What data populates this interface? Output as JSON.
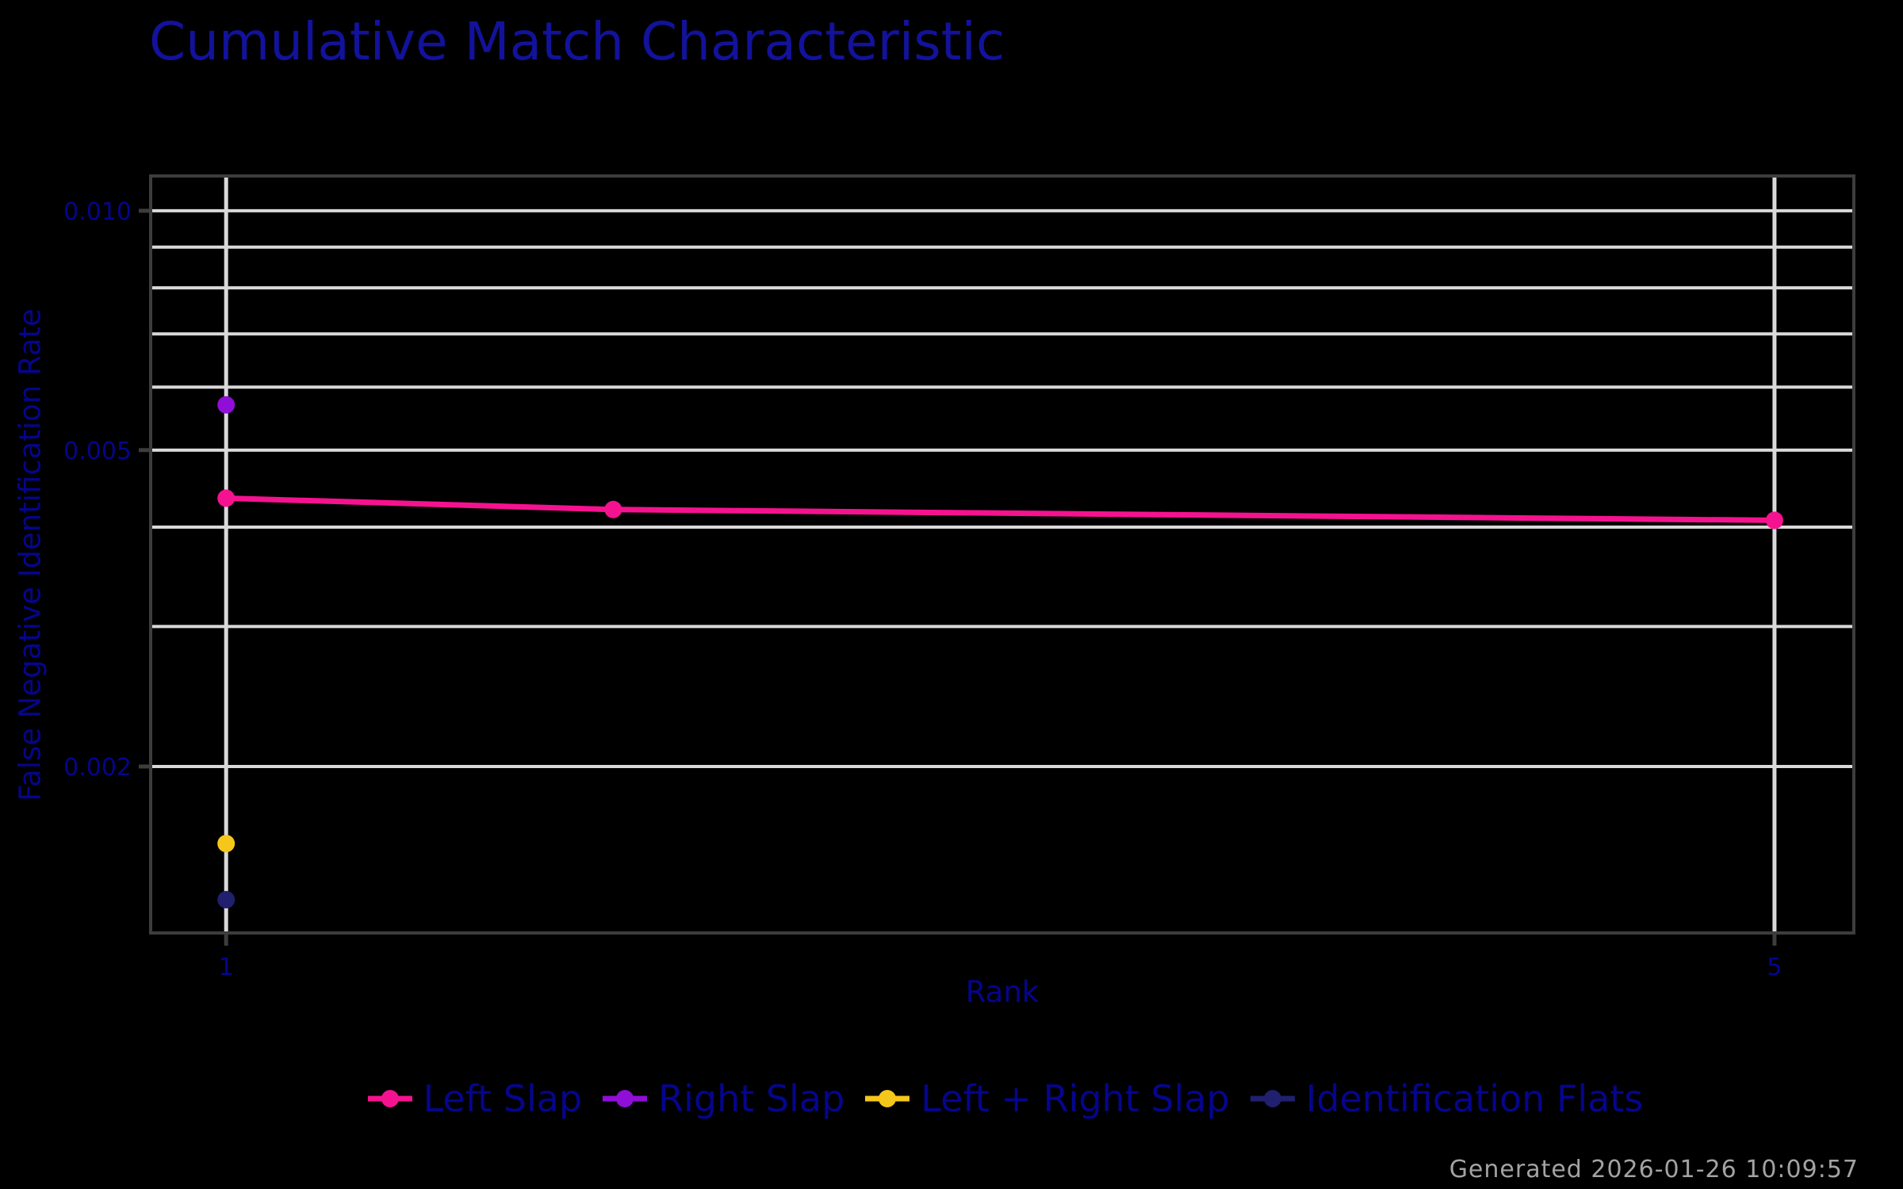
{
  "title": {
    "text": "Cumulative Match Characteristic"
  },
  "axes": {
    "x_label": "Rank",
    "y_label": "False Negative Identification Rate",
    "x_tick_labels": [
      "1",
      "5"
    ],
    "y_tick_labels": [
      "0.010",
      "0.005",
      "0.002"
    ]
  },
  "footer": {
    "text": "Generated 2026-01-26 10:09:57"
  },
  "style": {
    "background": "#000000",
    "title_color": "#12129B",
    "text_color": "#05058D",
    "grid_color": "#D9D9D9",
    "border_color": "#3D3D3D",
    "tick_color": "#3D3D3D",
    "timestamp_color": "#A3A3A3"
  },
  "chart_data": {
    "type": "line",
    "title": "Cumulative Match Characteristic",
    "xlabel": "Rank",
    "ylabel": "False Negative Identification Rate",
    "x_scale": "linear",
    "y_scale": "log10",
    "xlim": [
      0.805,
      5.205
    ],
    "ylim": [
      0.001235,
      0.01106
    ],
    "x_ticks": [
      1,
      5
    ],
    "y_ticks": [
      0.01,
      0.005,
      0.002
    ],
    "x_gridlines": [
      1,
      5
    ],
    "y_gridlines": [
      0.002,
      0.003,
      0.004,
      0.005,
      0.006,
      0.007,
      0.008,
      0.009,
      0.01
    ],
    "grid": true,
    "legend_position": "bottom",
    "series": [
      {
        "name": "Left Slap",
        "color": "#F5128F",
        "x": [
          1,
          2,
          5
        ],
        "y": [
          0.00435,
          0.00421,
          0.00408
        ]
      },
      {
        "name": "Right Slap",
        "color": "#8F0ED8",
        "x": [
          1
        ],
        "y": [
          0.0057
        ]
      },
      {
        "name": "Left + Right Slap",
        "color": "#F5C71B",
        "x": [
          1
        ],
        "y": [
          0.0016
        ]
      },
      {
        "name": "Identification Flats",
        "color": "#20206E",
        "x": [
          1
        ],
        "y": [
          0.00136
        ]
      }
    ]
  }
}
